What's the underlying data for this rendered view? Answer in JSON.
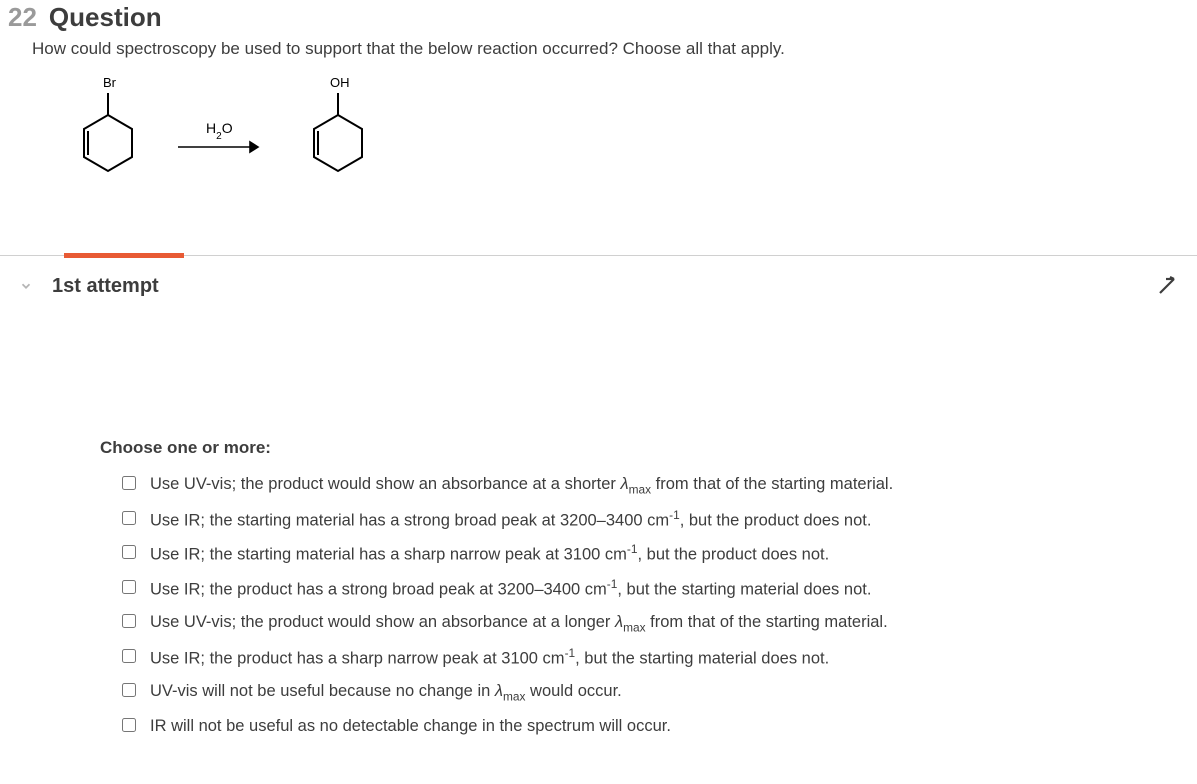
{
  "question": {
    "number": "22",
    "title": "Question",
    "prompt": "How could spectroscopy be used to support that the below reaction occurred? Choose all that apply."
  },
  "reaction": {
    "reactant_label": "Br",
    "product_label": "OH",
    "reagent_label": "H₂O",
    "structure_type": "cyclohexene-substituted",
    "arrow": "forward"
  },
  "colors": {
    "accent": "#e85a34",
    "text": "#3d3d3d",
    "muted": "#9a9a9a",
    "divider": "#d0d0d0",
    "background": "#ffffff"
  },
  "attempt": {
    "label": "1st attempt"
  },
  "choices": {
    "instruction": "Choose one or more:",
    "options": [
      {
        "html": "Use UV-vis; the product would show an absorbance at a shorter <span class='italic'>λ</span><span class='sub'>max</span> from that of the starting material."
      },
      {
        "html": "Use IR; the starting material has a strong broad peak at 3200–3400 cm<span class='sup'>-1</span>, but the product does not."
      },
      {
        "html": "Use IR; the starting material has a sharp narrow peak at 3100 cm<span class='sup'>-1</span>, but the product does not."
      },
      {
        "html": "Use IR; the product has a strong broad peak at 3200–3400 cm<span class='sup'>-1</span>, but the starting material does not."
      },
      {
        "html": "Use UV-vis; the product would show an absorbance at a longer <span class='italic'>λ</span><span class='sub'>max</span> from that of the starting material."
      },
      {
        "html": "Use IR; the product has a sharp narrow peak at 3100 cm<span class='sup'>-1</span>, but the starting material does not."
      },
      {
        "html": "UV-vis will not be useful because no change in <span class='italic'>λ</span><span class='sub'>max</span> would occur."
      },
      {
        "html": "IR will not be useful as no detectable change in the spectrum will occur."
      }
    ]
  }
}
